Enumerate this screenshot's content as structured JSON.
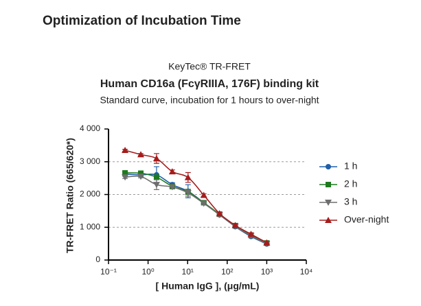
{
  "heading": "Optimization of Incubation Time",
  "chart_data": {
    "type": "line",
    "title": "KeyTec® TR-FRET",
    "subtitle": "Human CD16a (FcγRIIIA, 176F) binding kit",
    "caption": "Standard curve,  incubation for 1 hours to over-night",
    "xlabel": "[ Human IgG ],  (μg/mL)",
    "ylabel": "TR-FRET Ratio (665/620*)",
    "xscale": "log",
    "x": [
      0.262,
      0.655,
      1.638,
      4.096,
      10.24,
      25.6,
      64,
      160,
      400,
      1000
    ],
    "xlim": [
      0.1,
      10000
    ],
    "xticks": [
      {
        "value": 0.1,
        "label": "10⁻¹"
      },
      {
        "value": 1,
        "label": "10⁰"
      },
      {
        "value": 10,
        "label": "10¹"
      },
      {
        "value": 100,
        "label": "10²"
      },
      {
        "value": 1000,
        "label": "10³"
      },
      {
        "value": 10000,
        "label": "10⁴"
      }
    ],
    "ylim": [
      0,
      4000
    ],
    "yticks": [
      0,
      {
        "value": 1000,
        "label": "1 000"
      },
      {
        "value": 2000,
        "label": "2 000"
      },
      {
        "value": 3000,
        "label": "3 000"
      },
      {
        "value": 4000,
        "label": "4 000"
      }
    ],
    "grid": true,
    "legend": "right",
    "series": [
      {
        "name": "1 h",
        "color": "#1f5fa8",
        "marker": "circle",
        "values": [
          2620,
          2600,
          2600,
          2300,
          2100,
          1750,
          1380,
          1020,
          720,
          490
        ],
        "errors": [
          60,
          50,
          250,
          60,
          200,
          50,
          40,
          40,
          40,
          40
        ]
      },
      {
        "name": "2 h",
        "color": "#1e7a1e",
        "marker": "square",
        "values": [
          2660,
          2650,
          2530,
          2250,
          2080,
          1750,
          1400,
          1050,
          760,
          520
        ],
        "errors": [
          40,
          40,
          60,
          50,
          80,
          40,
          40,
          40,
          40,
          30
        ]
      },
      {
        "name": "3 h",
        "color": "#6e6e6e",
        "marker": "triangle-down",
        "values": [
          2530,
          2550,
          2300,
          2230,
          2050,
          1730,
          1380,
          1030,
          740,
          500
        ],
        "errors": [
          40,
          40,
          150,
          60,
          100,
          40,
          40,
          40,
          40,
          30
        ]
      },
      {
        "name": "Over-night",
        "color": "#a51c1c",
        "marker": "triangle-up",
        "values": [
          3350,
          3220,
          3100,
          2700,
          2520,
          1980,
          1420,
          1060,
          790,
          530
        ],
        "errors": [
          30,
          30,
          150,
          50,
          150,
          40,
          40,
          40,
          40,
          30
        ]
      }
    ]
  }
}
